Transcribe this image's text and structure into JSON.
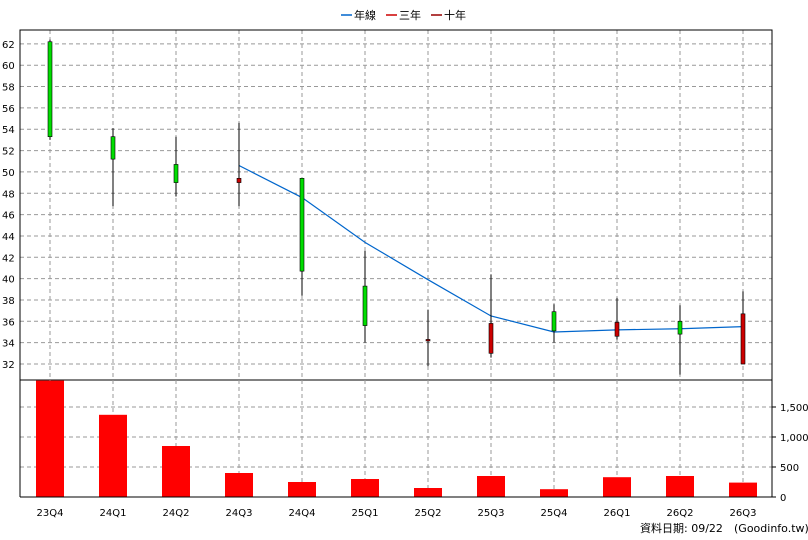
{
  "legend": {
    "annual_label": "年線",
    "three_year_label": "三年",
    "ten_year_label": "十年"
  },
  "footer": {
    "date_text": "資料日期: 09/22",
    "source_text": "(Goodinfo.tw)"
  },
  "colors": {
    "annual_line": "#0066cc",
    "three_year": "#cc0000",
    "ten_year": "#990000",
    "up_candle": "#00dd00",
    "down_candle": "#cc0000",
    "volume_bar": "#ff0000",
    "grid": "#999999"
  },
  "chart_data": [
    {
      "type": "candlestick",
      "categories": [
        "23Q4",
        "24Q1",
        "24Q2",
        "24Q3",
        "24Q4",
        "25Q1",
        "25Q2",
        "25Q3",
        "25Q4",
        "26Q1",
        "26Q2",
        "26Q3"
      ],
      "ohlc": [
        {
          "open": 53.3,
          "high": 62.4,
          "low": 53.0,
          "close": 62.2
        },
        {
          "open": 51.2,
          "high": 54.1,
          "low": 46.8,
          "close": 53.3
        },
        {
          "open": 49.0,
          "high": 53.3,
          "low": 47.7,
          "close": 50.7
        },
        {
          "open": 49.4,
          "high": 54.6,
          "low": 46.8,
          "close": 49.0
        },
        {
          "open": 40.7,
          "high": 49.4,
          "low": 38.4,
          "close": 49.4
        },
        {
          "open": 35.6,
          "high": 42.6,
          "low": 34.0,
          "close": 39.3
        },
        {
          "open": 34.3,
          "high": 37.1,
          "low": 31.8,
          "close": 34.2
        },
        {
          "open": 35.8,
          "high": 40.4,
          "low": 32.6,
          "close": 33.0
        },
        {
          "open": 35.1,
          "high": 37.6,
          "low": 34.0,
          "close": 36.9
        },
        {
          "open": 35.9,
          "high": 38.2,
          "low": 34.3,
          "close": 34.6
        },
        {
          "open": 34.8,
          "high": 37.5,
          "low": 31.0,
          "close": 36.0
        },
        {
          "open": 36.7,
          "high": 38.8,
          "low": 32.0,
          "close": 32.0
        }
      ],
      "annual_line": [
        {
          "x": "24Q3",
          "y": 50.6
        },
        {
          "x": "24Q4",
          "y": 47.6
        },
        {
          "x": "25Q1",
          "y": 43.4
        },
        {
          "x": "25Q2",
          "y": 39.9
        },
        {
          "x": "25Q3",
          "y": 36.5
        },
        {
          "x": "25Q4",
          "y": 35.0
        },
        {
          "x": "26Q1",
          "y": 35.2
        },
        {
          "x": "26Q2",
          "y": 35.3
        },
        {
          "x": "26Q3",
          "y": 35.5
        }
      ],
      "ylim": [
        30.5,
        63.3
      ],
      "yticks": [
        32,
        34,
        36,
        38,
        40,
        42,
        44,
        46,
        48,
        50,
        52,
        54,
        56,
        58,
        60,
        62
      ],
      "grid": true,
      "legend_position": "top-center"
    },
    {
      "type": "bar",
      "categories": [
        "23Q4",
        "24Q1",
        "24Q2",
        "24Q3",
        "24Q4",
        "25Q1",
        "25Q2",
        "25Q3",
        "25Q4",
        "26Q1",
        "26Q2",
        "26Q3"
      ],
      "values": [
        1940,
        1370,
        850,
        400,
        250,
        300,
        150,
        350,
        130,
        330,
        350,
        240
      ],
      "ylim": [
        0,
        1950
      ],
      "yticks": [
        0,
        500,
        1000,
        1500
      ],
      "ytick_labels": [
        "0",
        "500",
        "1,000",
        "1,500"
      ],
      "grid": true
    }
  ]
}
